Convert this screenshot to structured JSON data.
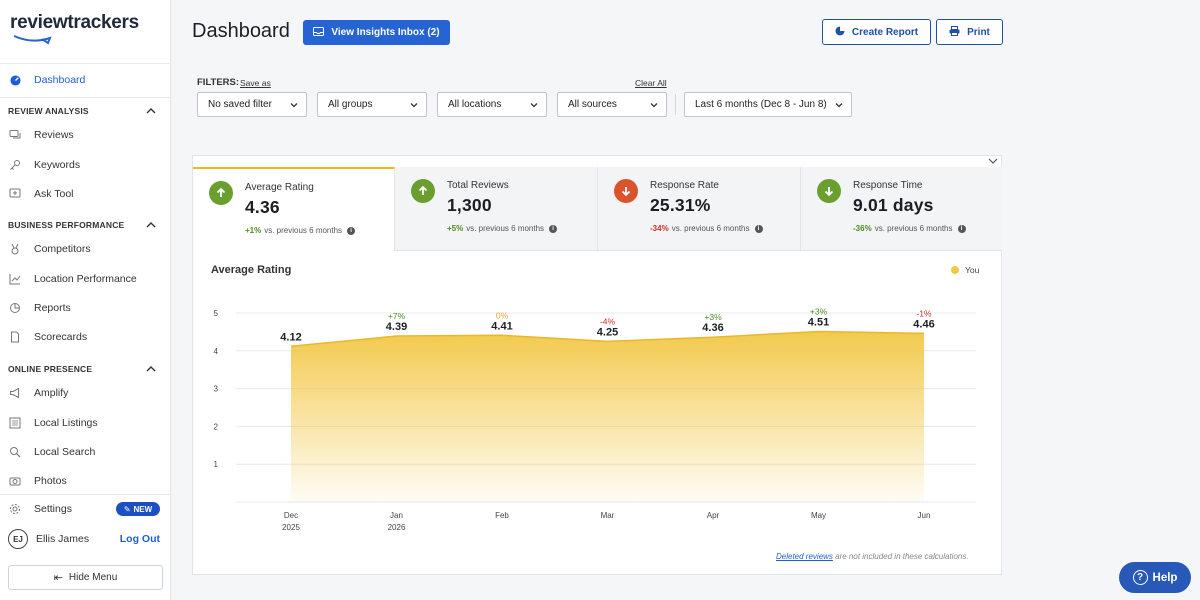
{
  "brand": {
    "name": "reviewtrackers"
  },
  "sidebar": {
    "dashboard": "Dashboard",
    "sections": [
      {
        "title": "REVIEW ANALYSIS",
        "items": [
          "Reviews",
          "Keywords",
          "Ask Tool"
        ]
      },
      {
        "title": "BUSINESS PERFORMANCE",
        "items": [
          "Competitors",
          "Location Performance",
          "Reports",
          "Scorecards"
        ]
      },
      {
        "title": "ONLINE PRESENCE",
        "items": [
          "Amplify",
          "Local Listings",
          "Local Search",
          "Photos"
        ]
      }
    ],
    "settings": "Settings",
    "settings_badge": "NEW",
    "user_initials": "EJ",
    "user_name": "Ellis James",
    "logout": "Log Out",
    "hide_menu": "Hide Menu"
  },
  "header": {
    "title": "Dashboard",
    "insights_button": "View Insights Inbox (2)",
    "create_report": "Create Report",
    "print": "Print"
  },
  "filters": {
    "label": "FILTERS:",
    "save_as": "Save as",
    "clear_all": "Clear All",
    "selects": [
      "No saved filter",
      "All groups",
      "All locations",
      "All sources",
      "Last 6 months (Dec 8 - Jun 8)"
    ]
  },
  "kpis": [
    {
      "title": "Average Rating",
      "value": "4.36",
      "change": "+1%",
      "direction": "up",
      "note": "vs. previous 6 months"
    },
    {
      "title": "Total Reviews",
      "value": "1,300",
      "change": "+5%",
      "direction": "up",
      "note": "vs. previous 6 months"
    },
    {
      "title": "Response Rate",
      "value": "25.31%",
      "change": "-34%",
      "direction": "down",
      "note": "vs. previous 6 months"
    },
    {
      "title": "Response Time",
      "value": "9.01 days",
      "change": "-36%",
      "direction": "down",
      "note": "vs. previous 6 months"
    }
  ],
  "colors": {
    "up": "#6a9e2f",
    "down": "#d9532c",
    "time_down": "#6a9e2f",
    "neutral": "#e8a33d",
    "area": "#f2c744",
    "accent": "#2764d3"
  },
  "chart": {
    "title": "Average Rating",
    "legend": "You"
  },
  "chart_data": {
    "type": "area",
    "title": "Average Rating",
    "categories": [
      "Dec",
      "Jan",
      "Feb",
      "Mar",
      "Apr",
      "May",
      "Jun"
    ],
    "category_years": [
      "2025",
      "2026",
      "",
      "",
      "",
      "",
      ""
    ],
    "series": [
      {
        "name": "You",
        "values": [
          4.12,
          4.39,
          4.41,
          4.25,
          4.36,
          4.51,
          4.46
        ],
        "value_labels": [
          "4.12",
          "4.39",
          "4.41",
          "4.25",
          "4.36",
          "4.51",
          "4.46"
        ],
        "changes": [
          "",
          "+7%",
          "0%",
          "-4%",
          "+3%",
          "+3%",
          "-1%"
        ]
      }
    ],
    "yticks": [
      "1",
      "2",
      "3",
      "4",
      "5"
    ],
    "ylim": [
      0,
      5
    ],
    "grid": true,
    "legend_position": "top-right"
  },
  "footnote": {
    "link": "Deleted reviews",
    "text": " are not included in these calculations."
  },
  "help": "Help"
}
